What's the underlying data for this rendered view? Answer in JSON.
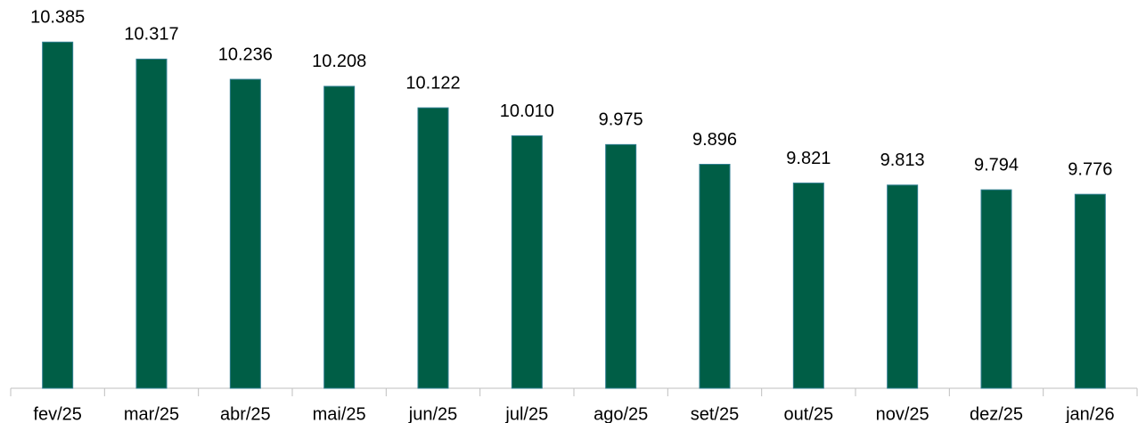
{
  "chart_data": {
    "type": "bar",
    "categories": [
      "fev/25",
      "mar/25",
      "abr/25",
      "mai/25",
      "jun/25",
      "jul/25",
      "ago/25",
      "set/25",
      "out/25",
      "nov/25",
      "dez/25",
      "jan/26"
    ],
    "values": [
      10385,
      10317,
      10236,
      10208,
      10122,
      10010,
      9975,
      9896,
      9821,
      9813,
      9794,
      9776
    ],
    "value_labels": [
      "10.385",
      "10.317",
      "10.236",
      "10.208",
      "10.122",
      "10.010",
      "9.975",
      "9.896",
      "9.821",
      "9.813",
      "9.794",
      "9.776"
    ],
    "color": "#005e46",
    "ylim": [
      9000,
      10500
    ]
  }
}
